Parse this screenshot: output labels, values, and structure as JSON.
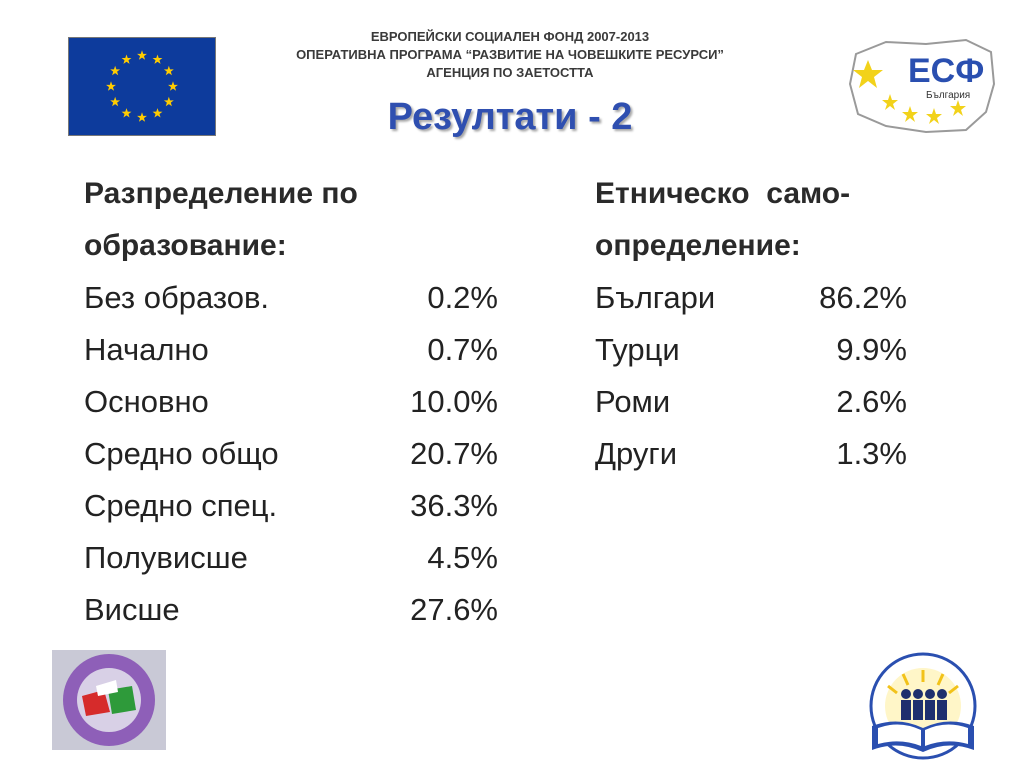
{
  "header": {
    "line1": "ЕВРОПЕЙСКИ СОЦИАЛЕН ФОНД 2007-2013",
    "line2": "ОПЕРАТИВНА ПРОГРАМА “РАЗВИТИЕ НА ЧОВЕШКИТЕ РЕСУРСИ”",
    "line3": "АГЕНЦИЯ ПО ЗАЕТОСТТА"
  },
  "title": "Резултати - 2",
  "esf_logo": {
    "text": "ЕСФ",
    "sub": "България"
  },
  "education": {
    "heading_line1": "Разпределение по",
    "heading_line2": "образование:",
    "rows": [
      {
        "label": "Без образов.",
        "value": "0.2%"
      },
      {
        "label": "Начално",
        "value": "0.7%"
      },
      {
        "label": "Основно",
        "value": "10.0%"
      },
      {
        "label": "Средно общо",
        "value": "20.7%"
      },
      {
        "label": "Средно спец.",
        "value": "36.3%"
      },
      {
        "label": "Полувисше",
        "value": "4.5%"
      },
      {
        "label": "Висше",
        "value": "27.6%"
      }
    ]
  },
  "ethnicity": {
    "heading_line1": "Етническо  само-",
    "heading_line2": "определение:",
    "rows": [
      {
        "label": "Българи",
        "value": "86.2%"
      },
      {
        "label": "Турци",
        "value": "9.9%"
      },
      {
        "label": "Роми",
        "value": "2.6%"
      },
      {
        "label": "Други",
        "value": "1.3%"
      }
    ]
  },
  "colors": {
    "title": "#2f4fb0",
    "eu_blue": "#0d3b9c",
    "eu_star": "#ffcc00"
  },
  "icons": [
    "eu-flag-icon",
    "esf-logo-icon",
    "union-logo-icon",
    "book-people-logo-icon"
  ]
}
